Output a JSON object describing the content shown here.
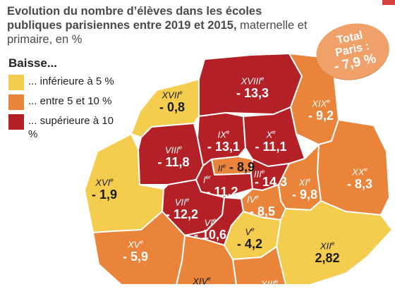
{
  "title": {
    "bold": "Evolution du nombre d’élèves dans les écoles publiques parisiennes entre 2019 et 2015,",
    "rest": " maternelle et primaire, en %"
  },
  "legend": {
    "heading": "Baisse...",
    "items": [
      {
        "label": "... inférieure à 5 %",
        "color": "#f4cc4e"
      },
      {
        "label": "... entre 5 et 10 %",
        "color": "#e9843a"
      },
      {
        "label": "... supérieure à 10 %",
        "color": "#b32126"
      }
    ]
  },
  "total": {
    "line1": "Total",
    "line2": "Paris :",
    "value": "- 7,9 %",
    "color": "#f0a16a"
  },
  "arrondissements": {
    "i": {
      "num": "I",
      "sup": "er",
      "value": "- 11,2",
      "category": "high"
    },
    "ii": {
      "num": "II",
      "sup": "e",
      "value": "- 8,9",
      "category": "mid"
    },
    "iii": {
      "num": "III",
      "sup": "e",
      "value": "- 14,3",
      "category": "high"
    },
    "iv": {
      "num": "IV",
      "sup": "e",
      "value": "- 8,5",
      "category": "mid"
    },
    "v": {
      "num": "V",
      "sup": "e",
      "value": "- 4,2",
      "category": "low"
    },
    "vi": {
      "num": "VI",
      "sup": "e",
      "value": "- 10,6",
      "category": "high"
    },
    "vii": {
      "num": "VII",
      "sup": "e",
      "value": "- 12,2",
      "category": "high"
    },
    "viii": {
      "num": "VIII",
      "sup": "e",
      "value": "- 11,8",
      "category": "high"
    },
    "ix": {
      "num": "IX",
      "sup": "e",
      "value": "- 13,1",
      "category": "high"
    },
    "x": {
      "num": "X",
      "sup": "e",
      "value": "- 11,1",
      "category": "high"
    },
    "xi": {
      "num": "XI",
      "sup": "e",
      "value": "- 9,8",
      "category": "mid"
    },
    "xii": {
      "num": "XII",
      "sup": "e",
      "value": "2,82",
      "category": "low"
    },
    "xiii": {
      "num": "XIII",
      "sup": "e",
      "value": "",
      "category": "mid"
    },
    "xiv": {
      "num": "XIV",
      "sup": "e",
      "value": "",
      "category": "mid"
    },
    "xv": {
      "num": "XV",
      "sup": "e",
      "value": "- 5,9",
      "category": "mid"
    },
    "xvi": {
      "num": "XVI",
      "sup": "e",
      "value": "- 1,9",
      "category": "low"
    },
    "xvii": {
      "num": "XVII",
      "sup": "e",
      "value": "- 0,8",
      "category": "low"
    },
    "xviii": {
      "num": "XVIII",
      "sup": "e",
      "value": "- 13,3",
      "category": "high"
    },
    "xix": {
      "num": "XIX",
      "sup": "e",
      "value": "- 9,2",
      "category": "mid"
    },
    "xx": {
      "num": "XX",
      "sup": "e",
      "value": "- 8,3",
      "category": "mid"
    }
  }
}
